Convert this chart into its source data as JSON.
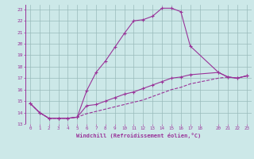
{
  "xlabel": "Windchill (Refroidissement éolien,°C)",
  "bg_color": "#cce8e8",
  "line_color": "#993399",
  "grid_color": "#99bbbb",
  "xlim": [
    -0.5,
    23.5
  ],
  "ylim": [
    13,
    23.4
  ],
  "xticks": [
    0,
    1,
    2,
    3,
    4,
    5,
    6,
    7,
    8,
    9,
    10,
    11,
    12,
    13,
    14,
    15,
    16,
    17,
    18,
    20,
    21,
    22,
    23
  ],
  "yticks": [
    13,
    14,
    15,
    16,
    17,
    18,
    19,
    20,
    21,
    22,
    23
  ],
  "line1_x": [
    0,
    1,
    2,
    3,
    4,
    5,
    6,
    7,
    8,
    9,
    10,
    11,
    12,
    13,
    14,
    15,
    16,
    17,
    20,
    21,
    22,
    23
  ],
  "line1_y": [
    14.8,
    14.0,
    13.5,
    13.5,
    13.5,
    13.6,
    15.9,
    17.5,
    18.5,
    19.7,
    20.9,
    22.0,
    22.1,
    22.4,
    23.1,
    23.1,
    22.8,
    19.8,
    17.5,
    17.1,
    17.0,
    17.2
  ],
  "line2_x": [
    0,
    1,
    2,
    3,
    4,
    5,
    6,
    7,
    8,
    9,
    10,
    11,
    12,
    13,
    14,
    15,
    16,
    17,
    20,
    21,
    22,
    23
  ],
  "line2_y": [
    14.8,
    14.0,
    13.5,
    13.5,
    13.5,
    13.6,
    14.6,
    14.7,
    15.0,
    15.3,
    15.6,
    15.8,
    16.1,
    16.4,
    16.7,
    17.0,
    17.1,
    17.3,
    17.5,
    17.1,
    17.0,
    17.2
  ],
  "line3_x": [
    0,
    1,
    2,
    3,
    4,
    5,
    6,
    7,
    8,
    9,
    10,
    11,
    12,
    13,
    14,
    15,
    16,
    17,
    20,
    21,
    22,
    23
  ],
  "line3_y": [
    14.8,
    14.0,
    13.5,
    13.5,
    13.5,
    13.6,
    13.9,
    14.1,
    14.3,
    14.5,
    14.7,
    14.9,
    15.1,
    15.4,
    15.7,
    16.0,
    16.2,
    16.5,
    17.0,
    17.1,
    17.0,
    17.2
  ],
  "marker": "+"
}
